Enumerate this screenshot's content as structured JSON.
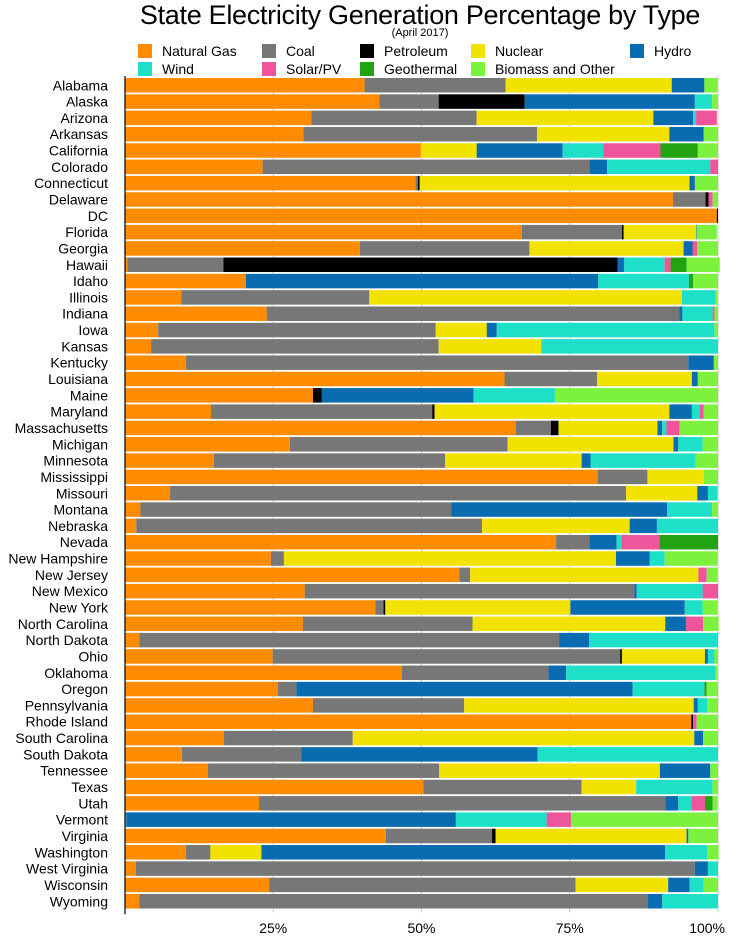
{
  "chart_data": {
    "type": "bar",
    "orientation": "horizontal",
    "stacked": true,
    "title": "State Electricity Generation Percentage by Type",
    "subtitle": "(April 2017)",
    "xlabel": "",
    "ylabel": "",
    "xlim": [
      0,
      100
    ],
    "x_ticks": [
      25,
      50,
      75,
      100
    ],
    "x_tick_labels": [
      "25%",
      "50%",
      "75%",
      "100%"
    ],
    "grid": "vertical",
    "legend_position": "top",
    "series_order": [
      "Natural Gas",
      "Coal",
      "Petroleum",
      "Nuclear",
      "Hydro",
      "Wind",
      "Solar/PV",
      "Geothermal",
      "Biomass and Other"
    ],
    "legend": [
      {
        "name": "Natural Gas",
        "color": "#FF8C00"
      },
      {
        "name": "Coal",
        "color": "#777777"
      },
      {
        "name": "Petroleum",
        "color": "#000000"
      },
      {
        "name": "Nuclear",
        "color": "#F2E200"
      },
      {
        "name": "Hydro",
        "color": "#0A6CB0"
      },
      {
        "name": "Wind",
        "color": "#1EE0C8"
      },
      {
        "name": "Solar/PV",
        "color": "#EE559A"
      },
      {
        "name": "Geothermal",
        "color": "#22A311"
      },
      {
        "name": "Biomass and Other",
        "color": "#7CF23E"
      }
    ],
    "categories": [
      "Alabama",
      "Alaska",
      "Arizona",
      "Arkansas",
      "California",
      "Colorado",
      "Connecticut",
      "Delaware",
      "DC",
      "Florida",
      "Georgia",
      "Hawaii",
      "Idaho",
      "Illinois",
      "Indiana",
      "Iowa",
      "Kansas",
      "Kentucky",
      "Louisiana",
      "Maine",
      "Maryland",
      "Massachusetts",
      "Michigan",
      "Minnesota",
      "Mississippi",
      "Missouri",
      "Montana",
      "Nebraska",
      "Nevada",
      "New Hampshire",
      "New Jersey",
      "New Mexico",
      "New York",
      "North Carolina",
      "North Dakota",
      "Ohio",
      "Oklahoma",
      "Oregon",
      "Pennsylvania",
      "Rhode Island",
      "South Carolina",
      "South Dakota",
      "Tennessee",
      "Texas",
      "Utah",
      "Vermont",
      "Virginia",
      "Washington",
      "West Virginia",
      "Wisconsin",
      "Wyoming"
    ],
    "series": [
      {
        "name": "Natural Gas",
        "values": [
          40.4,
          42.9,
          31.4,
          30.1,
          49.9,
          23.2,
          49.0,
          92.4,
          99.8,
          66.9,
          39.6,
          0.4,
          20.4,
          9.5,
          23.9,
          5.6,
          4.4,
          10.3,
          64.0,
          31.7,
          14.5,
          65.9,
          27.8,
          15.0,
          79.7,
          7.6,
          2.6,
          1.9,
          72.7,
          24.6,
          56.4,
          30.3,
          42.2,
          30.0,
          2.4,
          24.9,
          46.7,
          25.8,
          31.7,
          95.5,
          16.7,
          9.6,
          14.0,
          50.3,
          22.6,
          0.2,
          44.0,
          10.3,
          1.8,
          24.3,
          2.4
        ]
      },
      {
        "name": "Coal",
        "values": [
          23.8,
          10.0,
          27.9,
          39.4,
          0,
          55.1,
          0.4,
          5.5,
          0,
          16.9,
          28.6,
          16.2,
          0,
          31.7,
          69.6,
          46.8,
          48.5,
          84.7,
          15.6,
          0,
          37.3,
          5.9,
          36.7,
          39.0,
          8.4,
          76.9,
          52.4,
          58.3,
          5.6,
          2.2,
          1.8,
          55.6,
          1.4,
          28.6,
          70.8,
          58.6,
          24.7,
          3.1,
          25.5,
          0,
          21.7,
          20.1,
          39.0,
          26.7,
          68.5,
          0,
          17.9,
          4.1,
          94.3,
          51.7,
          85.8
        ]
      },
      {
        "name": "Petroleum",
        "values": [
          0,
          14.5,
          0,
          0,
          0,
          0,
          0.3,
          0.5,
          0.2,
          0.3,
          0,
          66.5,
          0,
          0,
          0,
          0,
          0,
          0,
          0,
          1.5,
          0.4,
          1.3,
          0,
          0,
          0,
          0,
          0,
          0,
          0,
          0,
          0,
          0,
          0.3,
          0,
          0,
          0.3,
          0,
          0,
          0,
          0.3,
          0,
          0,
          0,
          0,
          0,
          0,
          0.6,
          0,
          0,
          0,
          0
        ]
      },
      {
        "name": "Nuclear",
        "values": [
          28.0,
          0,
          29.8,
          22.3,
          9.4,
          0,
          45.5,
          0,
          0,
          12.2,
          26.0,
          0,
          0,
          52.7,
          0,
          8.6,
          17.3,
          0,
          16.0,
          0,
          39.6,
          16.7,
          28.0,
          23.0,
          9.5,
          12.0,
          0,
          24.9,
          0,
          56.0,
          38.5,
          0,
          31.2,
          32.5,
          0,
          14.0,
          0,
          0,
          38.7,
          0,
          57.6,
          0,
          37.2,
          9.2,
          0,
          0,
          32.2,
          8.6,
          0,
          15.6,
          0
        ]
      },
      {
        "name": "Hydro",
        "values": [
          5.5,
          28.7,
          6.7,
          5.8,
          14.5,
          3.0,
          0.9,
          0,
          0,
          0.1,
          1.5,
          1.1,
          59.4,
          0,
          0.5,
          1.7,
          0,
          4.3,
          1.0,
          25.6,
          3.8,
          0.8,
          0.8,
          1.5,
          0,
          1.8,
          36.4,
          4.6,
          4.6,
          5.7,
          0,
          0.4,
          19.3,
          3.5,
          5.1,
          0.5,
          3.0,
          56.7,
          0.7,
          0,
          1.5,
          39.9,
          8.5,
          0,
          2.2,
          55.6,
          0.3,
          68.1,
          2.2,
          3.6,
          2.4
        ]
      },
      {
        "name": "Wind",
        "values": [
          0,
          2.9,
          0.5,
          0,
          6.9,
          17.4,
          0,
          0,
          0,
          0,
          0,
          6.8,
          15.3,
          5.7,
          5.1,
          36.7,
          29.8,
          0,
          0,
          13.7,
          1.3,
          0.7,
          4.1,
          17.7,
          0,
          1.6,
          7.6,
          10.3,
          0.8,
          2.5,
          0,
          11.1,
          3.0,
          0,
          21.7,
          1.1,
          25.1,
          12.1,
          1.6,
          0,
          0,
          30.4,
          0,
          12.9,
          2.2,
          15.3,
          0,
          7.1,
          1.7,
          2.4,
          9.4
        ]
      },
      {
        "name": "Solar/PV",
        "values": [
          0,
          0,
          3.5,
          0,
          9.6,
          1.3,
          0,
          0.7,
          0,
          0,
          0.8,
          1.0,
          0,
          0,
          0.3,
          0,
          0,
          0,
          0,
          0,
          0.7,
          2.2,
          0,
          0,
          0,
          0,
          0,
          0,
          6.4,
          0,
          1.4,
          2.6,
          0,
          2.9,
          0,
          0,
          0,
          0,
          0,
          0.6,
          0,
          0,
          0,
          0,
          2.3,
          4.1,
          0,
          0,
          0,
          0,
          0
        ]
      },
      {
        "name": "Geothermal",
        "values": [
          0,
          0,
          0,
          0,
          6.3,
          0,
          0,
          0,
          0,
          0,
          0,
          2.7,
          0.7,
          0,
          0,
          0,
          0,
          0,
          0,
          0,
          0,
          0,
          0,
          0,
          0,
          0,
          0,
          0,
          9.9,
          0,
          0,
          0,
          0,
          0,
          0,
          0,
          0,
          0.4,
          0,
          0,
          0,
          0,
          0,
          0,
          1.3,
          0,
          0,
          0,
          0,
          0,
          0
        ]
      },
      {
        "name": "Biomass and Other",
        "values": [
          2.2,
          1.0,
          0,
          2.4,
          3.4,
          0,
          3.9,
          0.9,
          0,
          3.4,
          3.5,
          5.6,
          4.2,
          0.3,
          0.6,
          0.6,
          0,
          0.7,
          3.4,
          27.5,
          2.4,
          6.5,
          2.6,
          3.8,
          2.4,
          0,
          1.0,
          0,
          0,
          8.9,
          1.8,
          0,
          2.5,
          2.6,
          0,
          0.6,
          0.4,
          1.9,
          1.8,
          3.6,
          2.5,
          0,
          1.3,
          0.9,
          0.8,
          24.8,
          5.0,
          1.9,
          0,
          2.4,
          0
        ]
      }
    ]
  }
}
